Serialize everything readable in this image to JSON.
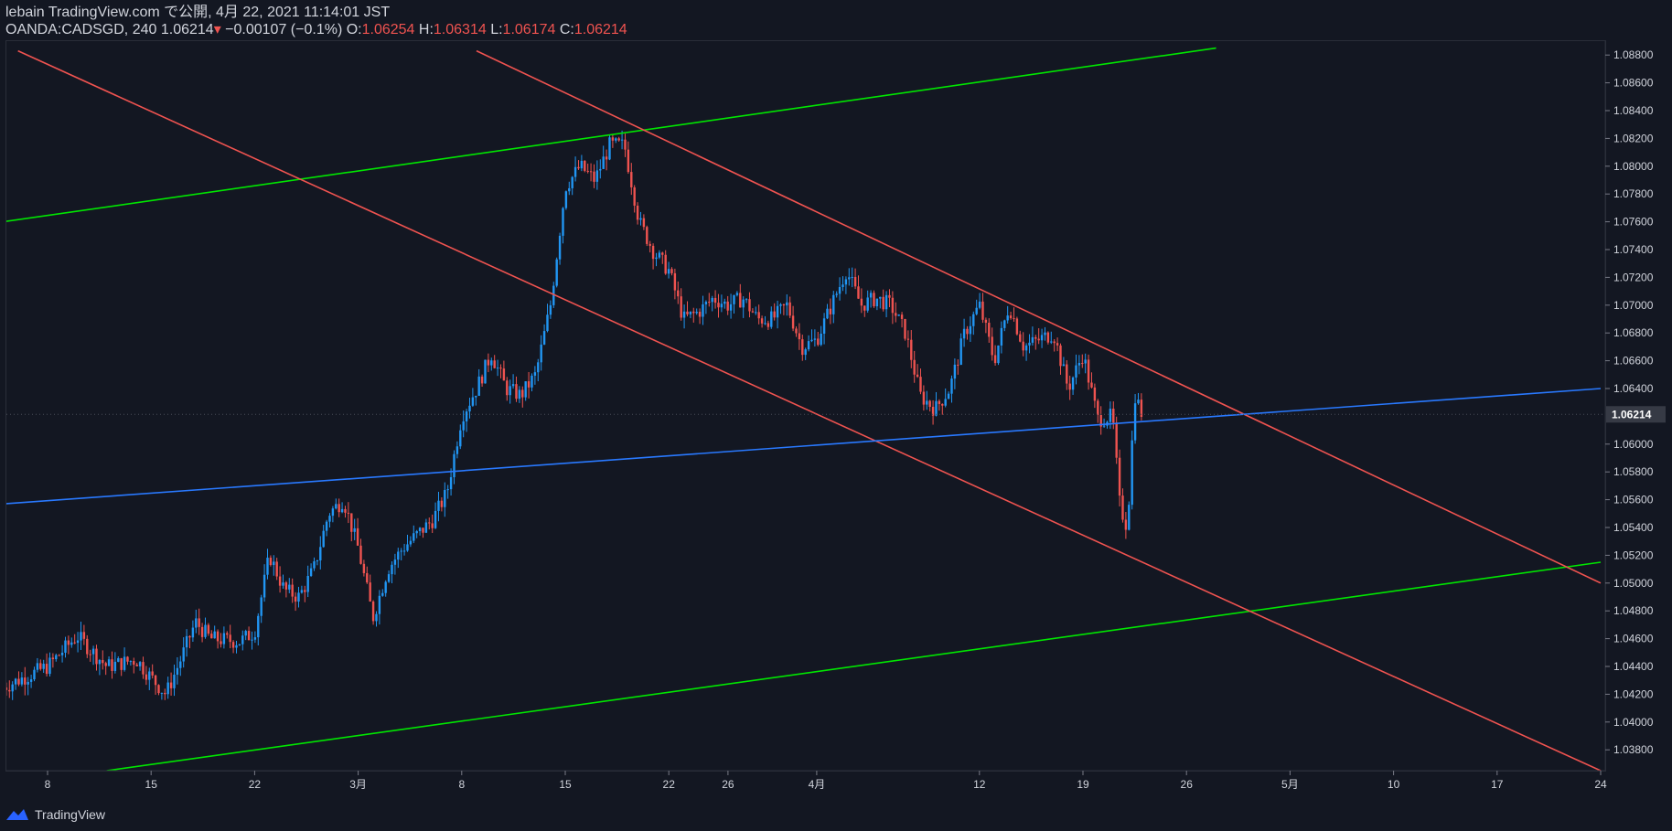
{
  "header": {
    "line1": "lebain TradingView.com で公開, 4月 22, 2021 11:14:01 JST",
    "symbol": "OANDA:CADSGD, 240",
    "last": "1.06214",
    "change": "−0.00107 (−0.1%)",
    "o_label": "O:",
    "o_value": "1.06254",
    "h_label": "H:",
    "h_value": "1.06314",
    "l_label": "L:",
    "l_value": "1.06174",
    "c_label": "C:",
    "c_value": "1.06214"
  },
  "footer": {
    "brand": "TradingView"
  },
  "colors": {
    "background": "#131722",
    "up": "#2196f3",
    "down": "#ef5350",
    "channel_red": "#ef5350",
    "channel_green": "#00e600",
    "midline_blue": "#2979ff",
    "axis_text": "#d1d4dc"
  },
  "chart_data": {
    "type": "candlestick",
    "ylim": [
      1.0365,
      1.089
    ],
    "y_ticks": [
      "1.08800",
      "1.08600",
      "1.08400",
      "1.08200",
      "1.08000",
      "1.07800",
      "1.07600",
      "1.07400",
      "1.07200",
      "1.07000",
      "1.06800",
      "1.06600",
      "1.06400",
      "1.06000",
      "1.05800",
      "1.05600",
      "1.05400",
      "1.05200",
      "1.05000",
      "1.04800",
      "1.04600",
      "1.04400",
      "1.04200",
      "1.04000",
      "1.03800"
    ],
    "last_price_label": "1.06214",
    "last_price": 1.06214,
    "x_ticks": [
      {
        "label": "8",
        "date": "2021-02-08"
      },
      {
        "label": "15",
        "date": "2021-02-15"
      },
      {
        "label": "22",
        "date": "2021-02-22"
      },
      {
        "label": "3月",
        "date": "2021-03-01"
      },
      {
        "label": "8",
        "date": "2021-03-08"
      },
      {
        "label": "15",
        "date": "2021-03-15"
      },
      {
        "label": "22",
        "date": "2021-03-22"
      },
      {
        "label": "26",
        "date": "2021-03-26"
      },
      {
        "label": "4月",
        "date": "2021-04-01"
      },
      {
        "label": "12",
        "date": "2021-04-12"
      },
      {
        "label": "19",
        "date": "2021-04-19"
      },
      {
        "label": "26",
        "date": "2021-04-26"
      },
      {
        "label": "5月",
        "date": "2021-05-03"
      },
      {
        "label": "10",
        "date": "2021-05-10"
      },
      {
        "label": "17",
        "date": "2021-05-17"
      },
      {
        "label": "24",
        "date": "2021-05-24"
      }
    ],
    "close_path": [
      [
        "2021-02-05",
        1.0425
      ],
      [
        "2021-02-08",
        1.044
      ],
      [
        "2021-02-10",
        1.0462
      ],
      [
        "2021-02-12",
        1.044
      ],
      [
        "2021-02-14",
        1.0445
      ],
      [
        "2021-02-15",
        1.0432
      ],
      [
        "2021-02-16",
        1.042
      ],
      [
        "2021-02-17",
        1.0445
      ],
      [
        "2021-02-18",
        1.0472
      ],
      [
        "2021-02-19",
        1.046
      ],
      [
        "2021-02-21",
        1.0458
      ],
      [
        "2021-02-22",
        1.0465
      ],
      [
        "2021-02-23",
        1.052
      ],
      [
        "2021-02-24",
        1.0495
      ],
      [
        "2021-02-25",
        1.049
      ],
      [
        "2021-02-26",
        1.051
      ],
      [
        "2021-02-27",
        1.055
      ],
      [
        "2021-02-28",
        1.056
      ],
      [
        "2021-03-01",
        1.0525
      ],
      [
        "2021-03-02",
        1.0475
      ],
      [
        "2021-03-03",
        1.051
      ],
      [
        "2021-03-04",
        1.0525
      ],
      [
        "2021-03-05",
        1.0535
      ],
      [
        "2021-03-06",
        1.0545
      ],
      [
        "2021-03-07",
        1.0565
      ],
      [
        "2021-03-08",
        1.062
      ],
      [
        "2021-03-09",
        1.064
      ],
      [
        "2021-03-10",
        1.0665
      ],
      [
        "2021-03-11",
        1.064
      ],
      [
        "2021-03-12",
        1.0635
      ],
      [
        "2021-03-13",
        1.065
      ],
      [
        "2021-03-14",
        1.07
      ],
      [
        "2021-03-15",
        1.0785
      ],
      [
        "2021-03-16",
        1.08
      ],
      [
        "2021-03-17",
        1.079
      ],
      [
        "2021-03-18",
        1.0815
      ],
      [
        "2021-03-19",
        1.0815
      ],
      [
        "2021-03-20",
        1.076
      ],
      [
        "2021-03-21",
        1.0738
      ],
      [
        "2021-03-22",
        1.0725
      ],
      [
        "2021-03-23",
        1.069
      ],
      [
        "2021-03-24",
        1.0695
      ],
      [
        "2021-03-25",
        1.0705
      ],
      [
        "2021-03-26",
        1.07
      ],
      [
        "2021-03-27",
        1.0705
      ],
      [
        "2021-03-28",
        1.069
      ],
      [
        "2021-03-29",
        1.069
      ],
      [
        "2021-03-30",
        1.07
      ],
      [
        "2021-03-31",
        1.067
      ],
      [
        "2021-04-01",
        1.0675
      ],
      [
        "2021-04-02",
        1.07
      ],
      [
        "2021-04-03",
        1.0725
      ],
      [
        "2021-04-04",
        1.07
      ],
      [
        "2021-04-05",
        1.0705
      ],
      [
        "2021-04-06",
        1.07
      ],
      [
        "2021-04-07",
        1.068
      ],
      [
        "2021-04-08",
        1.0635
      ],
      [
        "2021-04-09",
        1.0625
      ],
      [
        "2021-04-10",
        1.064
      ],
      [
        "2021-04-11",
        1.068
      ],
      [
        "2021-04-12",
        1.07
      ],
      [
        "2021-04-13",
        1.066
      ],
      [
        "2021-04-14",
        1.07
      ],
      [
        "2021-04-15",
        1.067
      ],
      [
        "2021-04-16",
        1.0675
      ],
      [
        "2021-04-17",
        1.068
      ],
      [
        "2021-04-18",
        1.064
      ],
      [
        "2021-04-19",
        1.0665
      ],
      [
        "2021-04-20",
        1.0618
      ],
      [
        "2021-04-21",
        1.062
      ],
      [
        "2021-04-21T12",
        1.0555
      ],
      [
        "2021-04-22",
        1.054
      ],
      [
        "2021-04-22T12",
        1.0636
      ],
      [
        "2021-04-23",
        1.0621
      ]
    ],
    "trendlines": [
      {
        "color": "#00e600",
        "from": [
          "2021-02-05",
          1.076
        ],
        "to": [
          "2021-04-28",
          1.0885
        ]
      },
      {
        "color": "#00e600",
        "from": [
          "2021-02-12",
          1.0365
        ],
        "to": [
          "2021-05-24",
          1.0515
        ]
      },
      {
        "color": "#ef5350",
        "from": [
          "2021-02-06",
          1.0883
        ],
        "to": [
          "2021-05-24",
          1.0365
        ]
      },
      {
        "color": "#ef5350",
        "from": [
          "2021-03-09",
          1.0883
        ],
        "to": [
          "2021-05-24",
          1.05
        ]
      },
      {
        "color": "#2979ff",
        "from": [
          "2021-02-05",
          1.0557
        ],
        "to": [
          "2021-05-24",
          1.064
        ]
      }
    ]
  }
}
